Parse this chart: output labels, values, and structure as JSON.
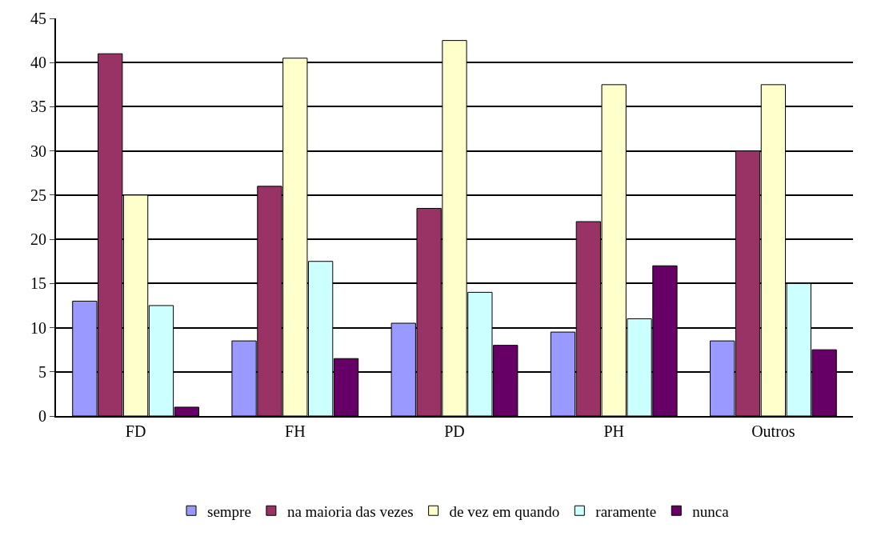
{
  "chart_data": {
    "type": "bar",
    "categories": [
      "FD",
      "FH",
      "PD",
      "PH",
      "Outros"
    ],
    "series": [
      {
        "name": "sempre",
        "color": "#9999ff",
        "values": [
          13,
          8.5,
          10.5,
          9.5,
          8.5
        ]
      },
      {
        "name": "na maioria das vezes",
        "color": "#993366",
        "values": [
          41,
          26,
          23.5,
          22,
          30
        ]
      },
      {
        "name": "de vez em quando",
        "color": "#ffffcc",
        "values": [
          25,
          40.5,
          42.5,
          37.5,
          37.5
        ]
      },
      {
        "name": "raramente",
        "color": "#ccffff",
        "values": [
          12.5,
          17.5,
          14,
          11,
          15
        ]
      },
      {
        "name": "nunca",
        "color": "#660066",
        "values": [
          1,
          6.5,
          8,
          17,
          7.5
        ]
      }
    ],
    "ylim": [
      0,
      45
    ],
    "yticks": [
      0,
      5,
      10,
      15,
      20,
      25,
      30,
      35,
      40,
      45
    ],
    "grid": "y",
    "legend": "bottom"
  }
}
